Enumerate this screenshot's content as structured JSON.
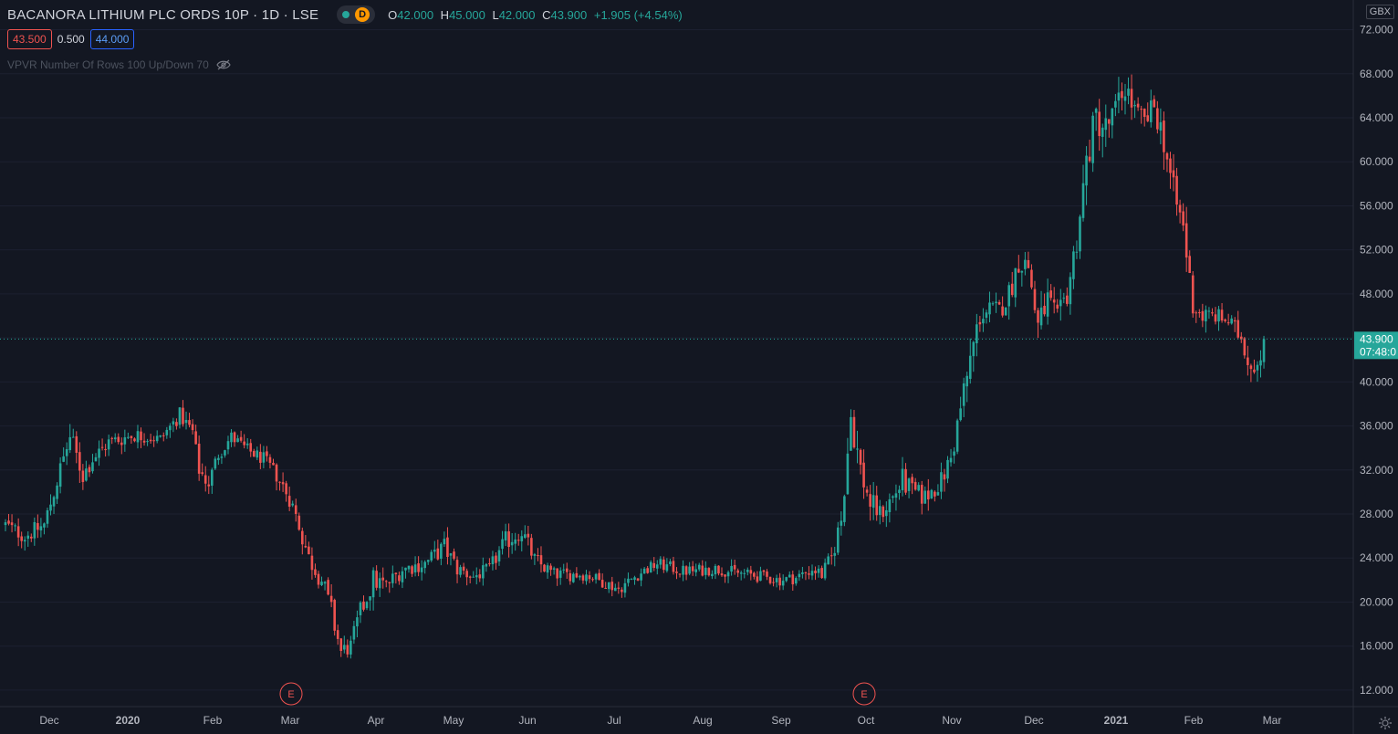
{
  "legend": {
    "symbol": "BACANORA LITHIUM PLC ORDS 10P · 1D · LSE",
    "interval_badge": "D",
    "open_label": "O",
    "open": "42.000",
    "high_label": "H",
    "high": "45.000",
    "low_label": "L",
    "low": "42.000",
    "close_label": "C",
    "close": "43.900",
    "change": "+1.905 (+4.54%)"
  },
  "trade": {
    "sell": "43.500",
    "spread": "0.500",
    "buy": "44.000"
  },
  "indicator": {
    "label": "VPVR Number Of Rows 100 Up/Down 70"
  },
  "currency": "GBX",
  "price_label": {
    "price": "43.900",
    "countdown": "07:48:0"
  },
  "earnings_marker": "E",
  "colors": {
    "up": "#26a69a",
    "down": "#ef5350",
    "background": "#131722",
    "text": "#d1d4dc"
  },
  "icons": [
    "eye-off-icon",
    "settings-icon",
    "live-dot-icon"
  ],
  "chart_data": {
    "type": "candlestick",
    "y_ticks": [
      "72.000",
      "68.000",
      "64.000",
      "60.000",
      "56.000",
      "52.000",
      "48.000",
      "44.000",
      "40.000",
      "36.000",
      "32.000",
      "28.000",
      "24.000",
      "20.000",
      "16.000",
      "12.000"
    ],
    "ylim": [
      10.5,
      74.7
    ],
    "x_labels": [
      "Dec",
      "2020",
      "Feb",
      "Mar",
      "Apr",
      "May",
      "Jun",
      "Jul",
      "Aug",
      "Sep",
      "Oct",
      "Nov",
      "Dec",
      "2021",
      "Feb",
      "Mar"
    ],
    "last_price": 43.9,
    "earnings_events": [
      {
        "date": "2020-03",
        "label": "E"
      },
      {
        "date": "2020-10",
        "label": "E"
      }
    ],
    "path": [
      [
        0,
        27.0,
        1.0
      ],
      [
        6,
        26.0,
        1.0
      ],
      [
        12,
        27.0,
        1.0
      ],
      [
        16,
        31.0,
        1.2
      ],
      [
        20,
        35.0,
        1.4
      ],
      [
        24,
        31.5,
        1.2
      ],
      [
        27,
        33.0,
        1.0
      ],
      [
        32,
        34.5,
        1.0
      ],
      [
        40,
        35.2,
        0.9
      ],
      [
        48,
        34.8,
        0.8
      ],
      [
        54,
        37.0,
        0.9
      ],
      [
        58,
        35.5,
        0.8
      ],
      [
        60,
        32.0,
        1.0
      ],
      [
        63,
        30.8,
        1.0
      ],
      [
        66,
        33.5,
        1.0
      ],
      [
        70,
        35.0,
        0.8
      ],
      [
        75,
        33.8,
        0.8
      ],
      [
        80,
        33.0,
        0.8
      ],
      [
        84,
        31.5,
        0.9
      ],
      [
        88,
        29.5,
        1.1
      ],
      [
        91,
        27.0,
        1.2
      ],
      [
        94,
        24.0,
        1.2
      ],
      [
        98,
        22.0,
        1.2
      ],
      [
        101,
        19.0,
        1.5
      ],
      [
        104,
        15.5,
        1.1
      ],
      [
        107,
        16.0,
        1.0
      ],
      [
        110,
        19.0,
        1.3
      ],
      [
        114,
        22.0,
        1.4
      ],
      [
        118,
        21.5,
        1.0
      ],
      [
        123,
        23.0,
        1.0
      ],
      [
        130,
        23.5,
        0.9
      ],
      [
        136,
        25.0,
        1.2
      ],
      [
        140,
        23.0,
        1.0
      ],
      [
        145,
        22.3,
        0.8
      ],
      [
        150,
        23.0,
        0.8
      ],
      [
        155,
        25.5,
        1.2
      ],
      [
        160,
        26.5,
        1.1
      ],
      [
        164,
        23.8,
        1.0
      ],
      [
        170,
        22.5,
        0.8
      ],
      [
        180,
        22.5,
        0.7
      ],
      [
        190,
        21.2,
        0.7
      ],
      [
        196,
        22.5,
        0.7
      ],
      [
        202,
        23.5,
        0.7
      ],
      [
        210,
        22.8,
        0.7
      ],
      [
        220,
        23.0,
        0.7
      ],
      [
        230,
        22.5,
        0.7
      ],
      [
        240,
        22.0,
        0.7
      ],
      [
        245,
        22.2,
        0.7
      ],
      [
        250,
        23.0,
        0.8
      ],
      [
        253,
        22.5,
        0.8
      ],
      [
        256,
        24.0,
        1.0
      ],
      [
        259,
        27.5,
        1.5
      ],
      [
        262,
        37.0,
        2.0
      ],
      [
        265,
        32.0,
        1.8
      ],
      [
        268,
        29.0,
        1.5
      ],
      [
        271,
        28.0,
        1.2
      ],
      [
        275,
        29.5,
        1.3
      ],
      [
        278,
        31.0,
        1.5
      ],
      [
        281,
        30.0,
        1.2
      ],
      [
        285,
        29.5,
        1.2
      ],
      [
        290,
        31.0,
        1.2
      ],
      [
        293,
        33.0,
        1.5
      ],
      [
        296,
        37.5,
        1.8
      ],
      [
        299,
        42.0,
        1.8
      ],
      [
        302,
        46.0,
        1.5
      ],
      [
        305,
        46.5,
        1.2
      ],
      [
        308,
        46.5,
        1.2
      ],
      [
        311,
        48.0,
        1.5
      ],
      [
        314,
        51.0,
        1.5
      ],
      [
        317,
        50.5,
        1.5
      ],
      [
        320,
        45.0,
        1.8
      ],
      [
        323,
        47.5,
        1.5
      ],
      [
        326,
        45.5,
        1.5
      ],
      [
        329,
        48.0,
        1.5
      ],
      [
        332,
        53.0,
        1.8
      ],
      [
        335,
        60.0,
        2.0
      ],
      [
        338,
        64.0,
        2.2
      ],
      [
        341,
        63.0,
        2.0
      ],
      [
        344,
        64.5,
        1.8
      ],
      [
        347,
        67.0,
        1.8
      ],
      [
        350,
        64.5,
        1.5
      ],
      [
        353,
        63.5,
        1.5
      ],
      [
        356,
        65.0,
        1.5
      ],
      [
        359,
        62.0,
        1.8
      ],
      [
        362,
        57.0,
        2.0
      ],
      [
        365,
        54.0,
        2.0
      ],
      [
        368,
        47.0,
        1.5
      ],
      [
        371,
        46.0,
        1.2
      ],
      [
        375,
        46.0,
        1.0
      ],
      [
        379,
        45.5,
        1.0
      ],
      [
        383,
        44.0,
        1.2
      ],
      [
        386,
        41.5,
        1.5
      ],
      [
        388,
        42.0,
        1.5
      ],
      [
        390,
        43.9,
        1.2
      ]
    ]
  }
}
